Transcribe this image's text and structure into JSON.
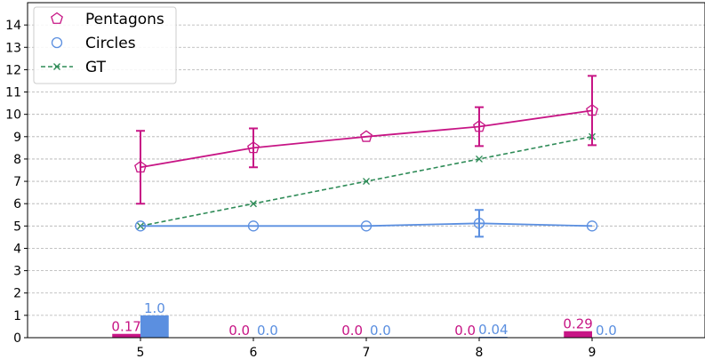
{
  "chart_data": {
    "type": "line",
    "x": [
      5,
      6,
      7,
      8,
      9
    ],
    "xlim": [
      4,
      10
    ],
    "ylim": [
      0,
      15
    ],
    "xticks": [
      5,
      6,
      7,
      8,
      9
    ],
    "yticks": [
      0,
      1,
      2,
      3,
      4,
      5,
      6,
      7,
      8,
      9,
      10,
      11,
      12,
      13,
      14
    ],
    "grid": "horizontal dashed",
    "legend": "top-left",
    "series": [
      {
        "name": "Pentagons",
        "marker": "pentagon",
        "line": "solid",
        "color": "#c71585",
        "values": [
          7.63,
          8.5,
          9.0,
          9.45,
          10.17
        ],
        "error": [
          1.63,
          0.87,
          0.0,
          0.87,
          1.55
        ]
      },
      {
        "name": "Circles",
        "marker": "circle",
        "line": "solid",
        "color": "#5b8fe0",
        "values": [
          5.0,
          5.0,
          5.0,
          5.12,
          5.0
        ],
        "error": [
          0.0,
          0.0,
          0.0,
          0.6,
          0.0
        ]
      },
      {
        "name": "GT",
        "marker": "x",
        "line": "dashed",
        "color": "#2e8b57",
        "values": [
          5,
          6,
          7,
          8,
          9
        ],
        "error": null
      }
    ],
    "bars": [
      {
        "series": "Pentagons",
        "color": "#c71585",
        "values": [
          0.17,
          0.0,
          0.0,
          0.0,
          0.29
        ],
        "labels": [
          "0.17",
          "0.0",
          "0.0",
          "0.0",
          "0.29"
        ]
      },
      {
        "series": "Circles",
        "color": "#5b8fe0",
        "values": [
          1.0,
          0.0,
          0.0,
          0.04,
          0.0
        ],
        "labels": [
          "1.0",
          "0.0",
          "0.0",
          "0.04",
          "0.0"
        ]
      }
    ]
  }
}
